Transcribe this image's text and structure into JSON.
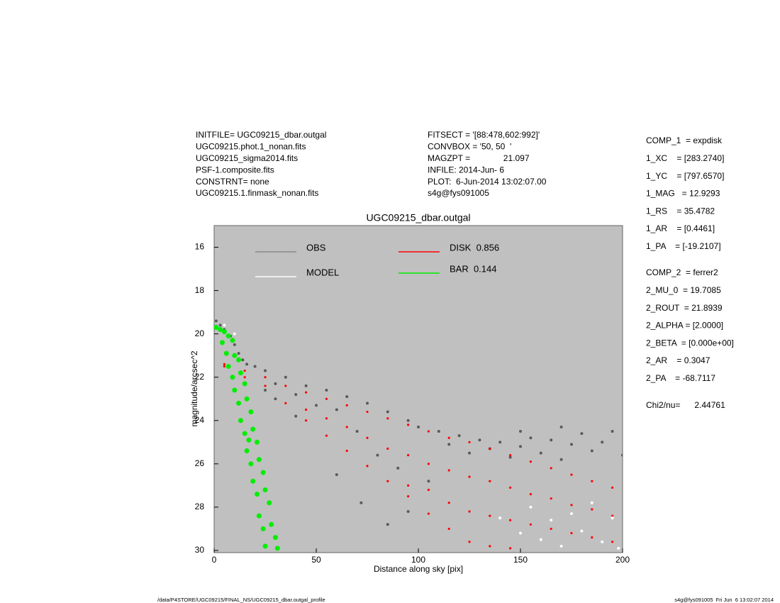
{
  "chart_data": {
    "type": "scatter",
    "title": "UGC09215_dbar.outgal",
    "xlabel": "Distance along sky [pix]",
    "ylabel": "magnitude/arcsec^2",
    "xlim": [
      0,
      200
    ],
    "xticks": [
      0,
      50,
      100,
      150,
      200
    ],
    "ylim": [
      30.1,
      15
    ],
    "yticks": [
      16,
      18,
      20,
      22,
      24,
      26,
      28,
      30
    ],
    "background": "#c0c0c0",
    "series": [
      {
        "name": "OBS",
        "color": "#5a5a5a",
        "x": [
          1,
          3,
          5,
          8,
          10,
          12,
          14,
          16,
          20,
          25,
          30,
          35,
          40,
          45,
          50,
          55,
          60,
          65,
          70,
          75,
          80,
          85,
          90,
          95,
          100,
          105,
          110,
          115,
          120,
          125,
          130,
          135,
          140,
          145,
          150,
          155,
          160,
          165,
          170,
          175,
          180,
          185,
          190,
          195,
          200,
          60,
          72,
          85,
          95,
          40,
          30,
          25,
          150,
          170
        ],
        "values": [
          19.4,
          19.6,
          19.8,
          20.1,
          20.5,
          20.9,
          21.2,
          21.4,
          21.5,
          21.7,
          22.3,
          22.0,
          22.8,
          22.4,
          23.3,
          22.6,
          23.5,
          22.9,
          24.5,
          23.2,
          25.6,
          23.6,
          26.2,
          24.0,
          24.3,
          26.8,
          24.5,
          25.1,
          24.7,
          25.5,
          24.9,
          25.3,
          25.0,
          25.7,
          25.2,
          24.8,
          25.5,
          24.9,
          25.8,
          25.1,
          24.6,
          25.4,
          25.0,
          24.5,
          25.6,
          26.5,
          27.8,
          28.8,
          28.2,
          23.8,
          23.0,
          22.6,
          24.5,
          24.3
        ]
      },
      {
        "name": "DISK  0.856",
        "color": "#ff0000",
        "x": [
          5,
          5,
          15,
          15,
          25,
          25,
          35,
          35,
          45,
          45,
          45,
          55,
          55,
          55,
          65,
          65,
          65,
          75,
          75,
          75,
          85,
          85,
          85,
          95,
          95,
          95,
          95,
          105,
          105,
          105,
          105,
          115,
          115,
          115,
          115,
          125,
          125,
          125,
          125,
          135,
          135,
          135,
          135,
          145,
          145,
          145,
          145,
          155,
          155,
          155,
          165,
          165,
          165,
          175,
          175,
          175,
          185,
          185,
          185,
          195,
          195,
          195
        ],
        "values": [
          21.4,
          21.5,
          21.7,
          22.0,
          22.0,
          22.4,
          22.4,
          23.2,
          22.7,
          23.5,
          24.0,
          23.0,
          23.9,
          24.7,
          23.3,
          24.3,
          25.4,
          23.6,
          24.8,
          26.1,
          23.9,
          25.3,
          26.8,
          24.2,
          25.6,
          27.0,
          27.5,
          24.5,
          26.0,
          27.2,
          28.3,
          24.8,
          26.3,
          27.8,
          29.0,
          25.0,
          26.6,
          28.2,
          29.6,
          25.3,
          26.8,
          28.4,
          29.8,
          25.6,
          27.1,
          28.6,
          29.9,
          25.9,
          27.4,
          28.8,
          26.2,
          27.6,
          29.0,
          26.5,
          27.9,
          29.2,
          26.8,
          28.1,
          29.4,
          27.1,
          28.4,
          29.6
        ]
      },
      {
        "name": "MODEL",
        "color": "#ffffff",
        "x": [
          140,
          150,
          155,
          160,
          165,
          170,
          175,
          180,
          185,
          190,
          195,
          198,
          5,
          10
        ],
        "values": [
          28.5,
          29.2,
          28.0,
          29.5,
          28.6,
          29.8,
          28.3,
          29.1,
          27.8,
          29.6,
          28.5,
          29.9,
          19.6,
          20.0
        ]
      },
      {
        "name": "BAR  0.144",
        "color": "#00ee00",
        "x": [
          1,
          3,
          5,
          7,
          9,
          4,
          6,
          10,
          12,
          7,
          9,
          13,
          15,
          10,
          12,
          16,
          18,
          13,
          15,
          19,
          21,
          16,
          18,
          22,
          24,
          19,
          21,
          25,
          27,
          22,
          24,
          28,
          30,
          25,
          31,
          17
        ],
        "values": [
          19.7,
          19.8,
          19.9,
          20.1,
          20.3,
          20.4,
          20.9,
          21.0,
          21.2,
          21.5,
          22.0,
          21.8,
          22.3,
          22.6,
          23.2,
          23.0,
          23.6,
          24.0,
          24.6,
          24.4,
          25.0,
          25.4,
          26.0,
          25.8,
          26.4,
          26.8,
          27.4,
          27.2,
          27.8,
          28.4,
          29.0,
          28.8,
          29.4,
          29.8,
          29.9,
          24.9
        ]
      }
    ]
  },
  "info": {
    "left": [
      "INITFILE= UGC09215_dbar.outgal",
      "UGC09215.phot.1_nonan.fits",
      "UGC09215_sigma2014.fits",
      "PSF-1.composite.fits",
      "CONSTRNT= none",
      "UGC09215.1.finmask_nonan.fits"
    ],
    "middle": [
      "FITSECT = '[88:478,602:992]'",
      "CONVBOX = '50, 50  '",
      "MAGZPT =              21.097",
      "INFILE: 2014-Jun- 6",
      "PLOT:  6-Jun-2014 13:02:07.00",
      "s4g@fys091005"
    ],
    "comp1": [
      "COMP_1  = expdisk",
      "1_XC    = [283.2740]",
      "1_YC    = [797.6570]",
      "1_MAG   = 12.9293",
      "1_RS    = 35.4782",
      "1_AR    = [0.4461]",
      "1_PA    = [-19.2107]"
    ],
    "comp2": [
      "COMP_2  = ferrer2",
      "2_MU_0  = 19.7085",
      "2_ROUT  = 21.8939",
      "2_ALPHA = [2.0000]",
      "2_BETA  = [0.000e+00]",
      "2_AR    = 0.3047",
      "2_PA    = -68.7117"
    ],
    "chi2": "Chi2/nu=      2.44761",
    "footer_left": "/data/P4STORE/UGC09215/FINAL_NS/UGC09215_dbar.outgal_profile",
    "footer_right": "s4g@fys091005  Fri Jun  6 13:02:07 2014"
  }
}
